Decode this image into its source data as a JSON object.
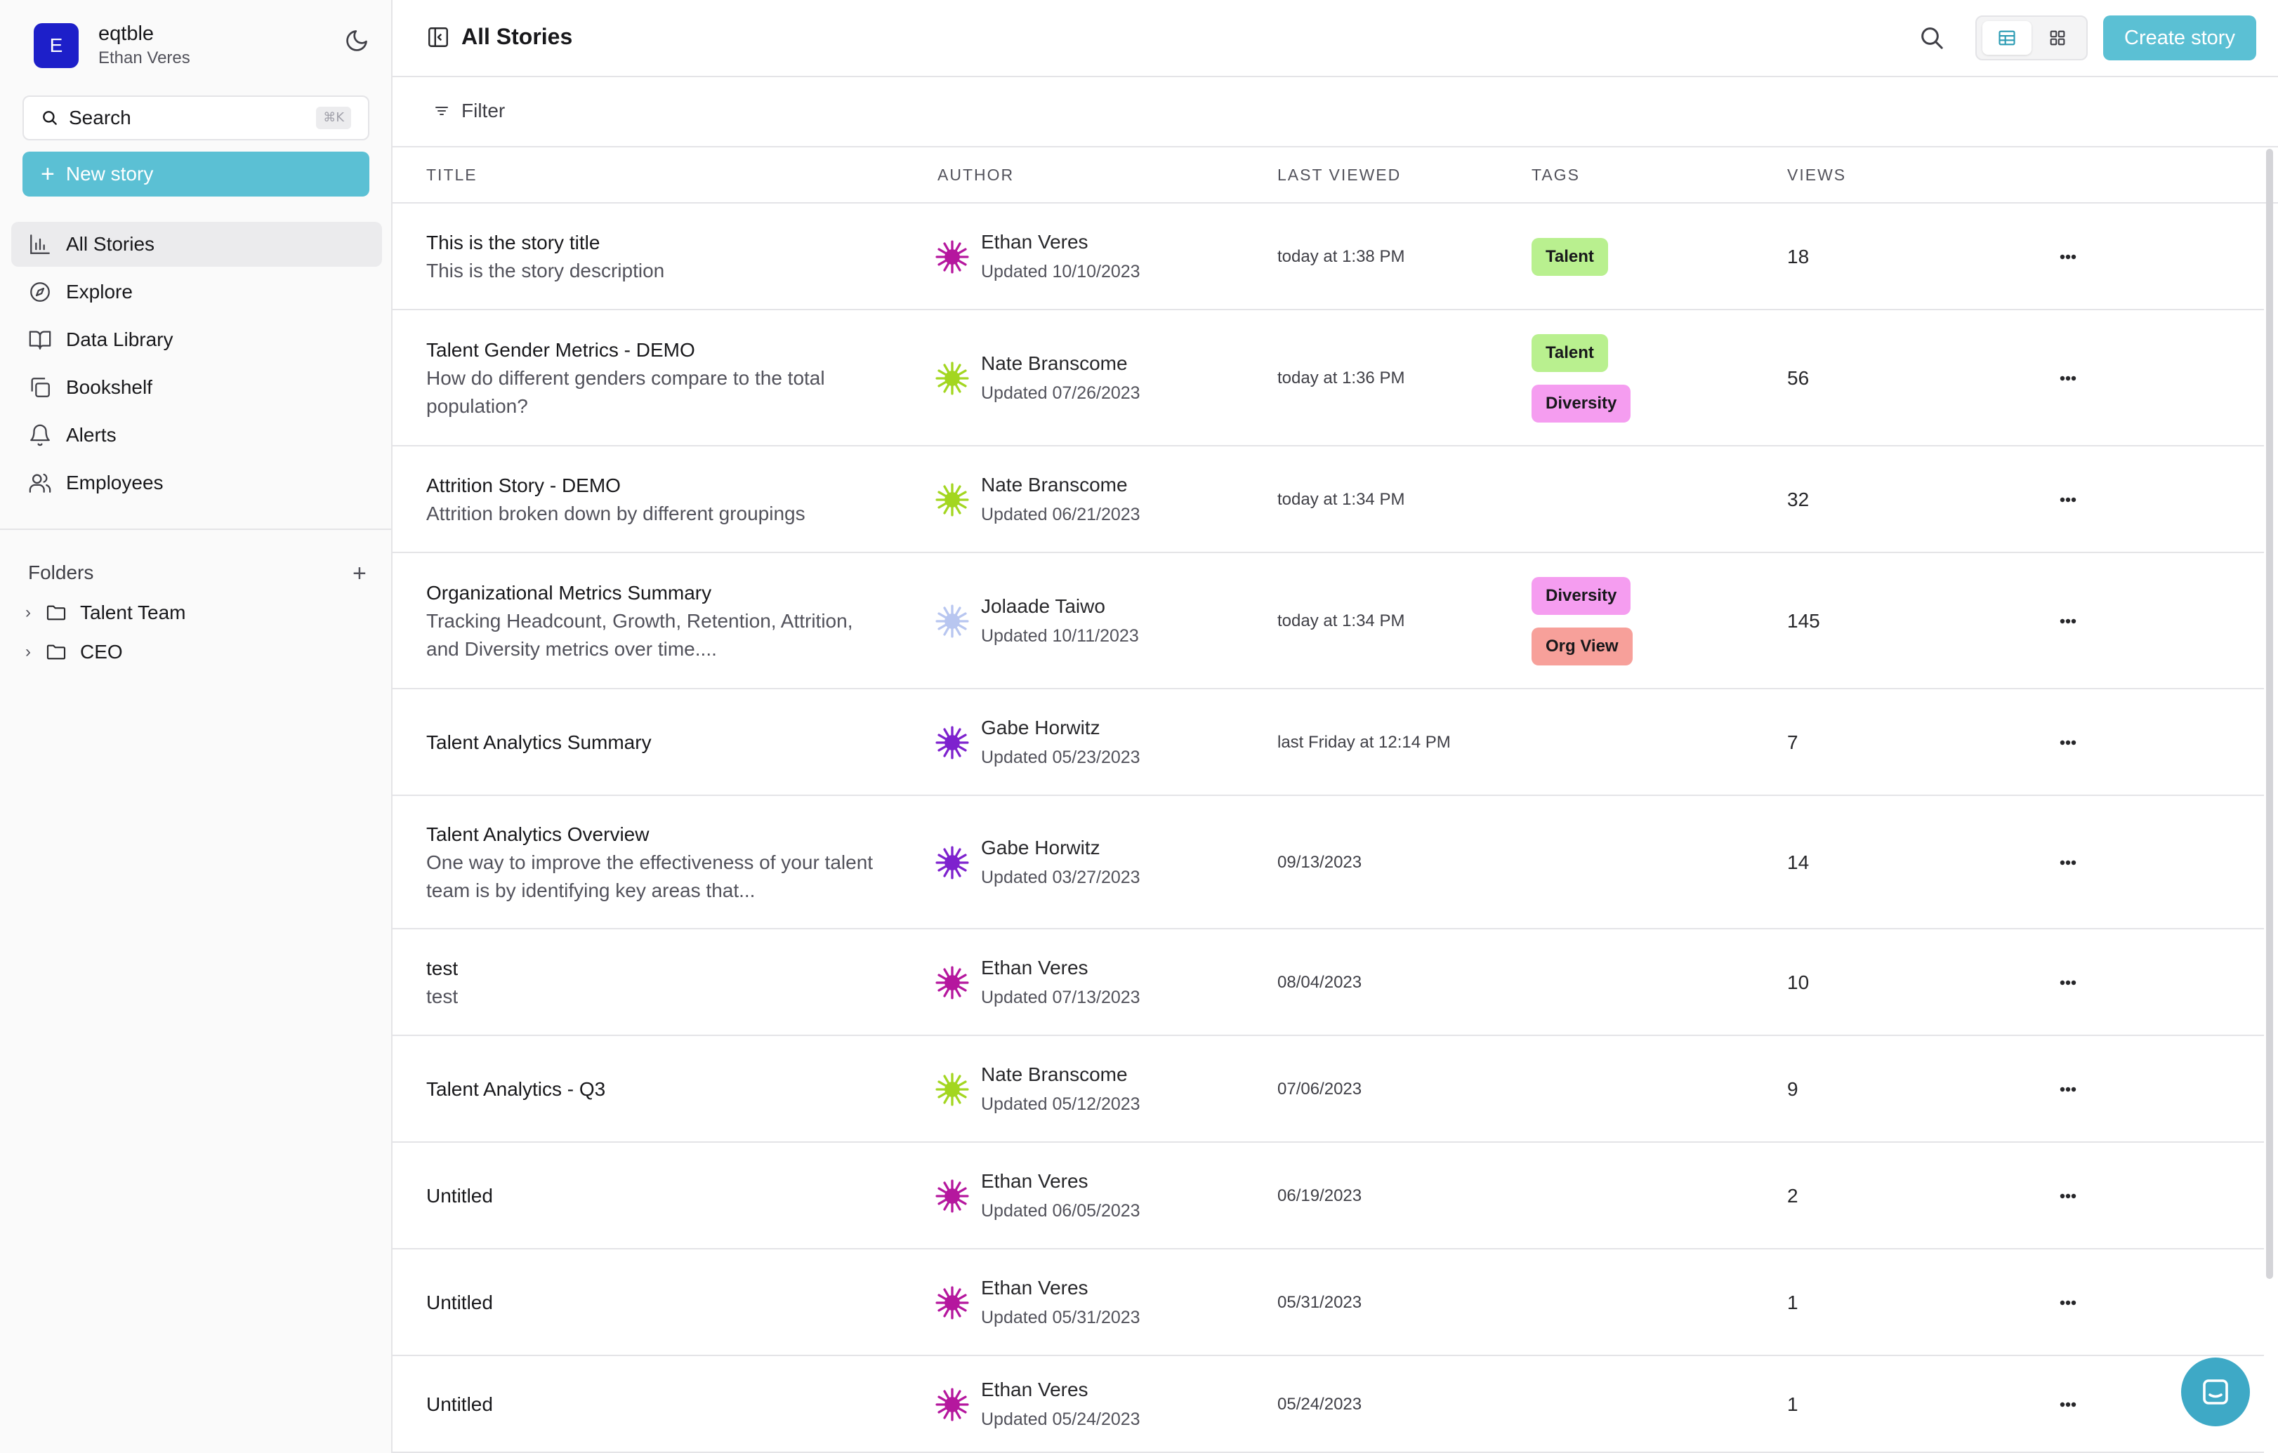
{
  "workspace": {
    "initial": "E",
    "name": "eqtble",
    "user": "Ethan Veres"
  },
  "sidebar": {
    "search_label": "Search",
    "search_shortcut": "⌘K",
    "new_story_label": "New story",
    "nav": [
      {
        "label": "All Stories",
        "icon": "chart-icon",
        "active": true
      },
      {
        "label": "Explore",
        "icon": "compass-icon"
      },
      {
        "label": "Data Library",
        "icon": "book-icon"
      },
      {
        "label": "Bookshelf",
        "icon": "copy-icon"
      },
      {
        "label": "Alerts",
        "icon": "bell-icon"
      },
      {
        "label": "Employees",
        "icon": "users-icon"
      }
    ],
    "folders_title": "Folders",
    "folders": [
      {
        "label": "Talent Team"
      },
      {
        "label": "CEO"
      }
    ]
  },
  "header": {
    "title": "All Stories",
    "create_label": "Create story"
  },
  "filter_label": "Filter",
  "colors": {
    "accent": "#5bc0d4",
    "tag_talent": "#b9f08f",
    "tag_diversity": "#f59df0",
    "tag_orgview": "#f7a09a"
  },
  "table": {
    "columns": [
      "TITLE",
      "AUTHOR",
      "LAST VIEWED",
      "TAGS",
      "VIEWS"
    ],
    "rows": [
      {
        "title": "This is the story title",
        "desc": "This is the story description",
        "author": "Ethan Veres",
        "updated": "Updated 10/10/2023",
        "last": "today at 1:38 PM",
        "tags": [
          "Talent"
        ],
        "views": "18",
        "avatar": "#b5179e"
      },
      {
        "title": "Talent Gender Metrics - DEMO",
        "desc": "How do different genders compare to the total population?",
        "author": "Nate Branscome",
        "updated": "Updated 07/26/2023",
        "last": "today at 1:36 PM",
        "tags": [
          "Talent",
          "Diversity"
        ],
        "views": "56",
        "avatar": "#a3d620"
      },
      {
        "title": "Attrition Story - DEMO",
        "desc": "Attrition broken down by different groupings",
        "author": "Nate Branscome",
        "updated": "Updated 06/21/2023",
        "last": "today at 1:34 PM",
        "tags": [],
        "views": "32",
        "avatar": "#a3d620"
      },
      {
        "title": "Organizational Metrics Summary",
        "desc": "Tracking Headcount, Growth, Retention, Attrition, and Diversity metrics over time....",
        "author": "Jolaade Taiwo",
        "updated": "Updated 10/11/2023",
        "last": "today at 1:34 PM",
        "tags": [
          "Diversity",
          "Org View"
        ],
        "views": "145",
        "avatar": "#b8c6f0"
      },
      {
        "title": "Talent Analytics Summary",
        "desc": "",
        "author": "Gabe Horwitz",
        "updated": "Updated 05/23/2023",
        "last": "last Friday at 12:14 PM",
        "tags": [],
        "views": "7",
        "avatar": "#7e22ce"
      },
      {
        "title": "Talent Analytics Overview",
        "desc": "One way to improve the effectiveness of your talent team is by identifying key areas that...",
        "author": "Gabe Horwitz",
        "updated": "Updated 03/27/2023",
        "last": "09/13/2023",
        "tags": [],
        "views": "14",
        "avatar": "#7e22ce"
      },
      {
        "title": "test",
        "desc": "test",
        "author": "Ethan Veres",
        "updated": "Updated 07/13/2023",
        "last": "08/04/2023",
        "tags": [],
        "views": "10",
        "avatar": "#b5179e"
      },
      {
        "title": "Talent Analytics - Q3",
        "desc": "",
        "author": "Nate Branscome",
        "updated": "Updated 05/12/2023",
        "last": "07/06/2023",
        "tags": [],
        "views": "9",
        "avatar": "#a3d620"
      },
      {
        "title": "Untitled",
        "desc": "",
        "author": "Ethan Veres",
        "updated": "Updated 06/05/2023",
        "last": "06/19/2023",
        "tags": [],
        "views": "2",
        "avatar": "#b5179e"
      },
      {
        "title": "Untitled",
        "desc": "",
        "author": "Ethan Veres",
        "updated": "Updated 05/31/2023",
        "last": "05/31/2023",
        "tags": [],
        "views": "1",
        "avatar": "#b5179e"
      },
      {
        "title": "Untitled",
        "desc": "",
        "author": "Ethan Veres",
        "updated": "Updated 05/24/2023",
        "last": "05/24/2023",
        "tags": [],
        "views": "1",
        "avatar": "#b5179e"
      }
    ]
  }
}
